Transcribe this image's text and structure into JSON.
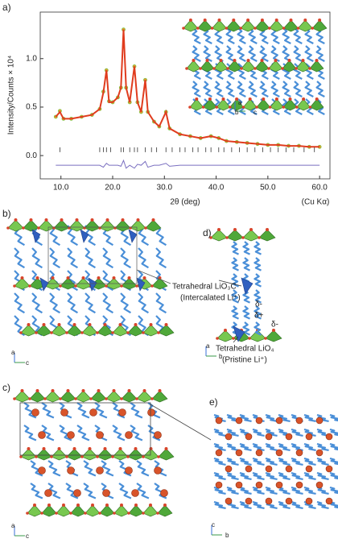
{
  "chart_data": {
    "type": "line",
    "panel_label": "a)",
    "ylabel": "Intensity/Counts × 10⁴",
    "xlabel": "2θ (deg)",
    "x_note": "(Cu Kα)",
    "xlim": [
      6,
      62
    ],
    "ylim": [
      -0.24,
      1.48
    ],
    "xticks": [
      {
        "value": 10,
        "label": "10.0"
      },
      {
        "value": 20,
        "label": "20.0"
      },
      {
        "value": 30,
        "label": "30.0"
      },
      {
        "value": 40,
        "label": "40.0"
      },
      {
        "value": 50,
        "label": "50.0"
      },
      {
        "value": 60,
        "label": "60.0"
      }
    ],
    "yticks": [
      {
        "value": 0,
        "label": "0.0"
      },
      {
        "value": 0.5,
        "label": "0.5"
      },
      {
        "value": 1,
        "label": "1.0"
      }
    ],
    "x": [
      9,
      9.8,
      10.5,
      12,
      14,
      16,
      17.5,
      18.2,
      18.8,
      19.3,
      20,
      21,
      21.6,
      22.1,
      22.6,
      23.3,
      24.2,
      24.8,
      25.5,
      26.3,
      26.8,
      28,
      29,
      30.3,
      31,
      33,
      35,
      37,
      39,
      40.5,
      42,
      44,
      46,
      48,
      50,
      52,
      54,
      56,
      58,
      60
    ],
    "series": [
      {
        "mark": "circle",
        "color": "#e8a030",
        "values": [
          0.4,
          0.46,
          0.38,
          0.38,
          0.4,
          0.42,
          0.48,
          0.66,
          0.88,
          0.56,
          0.55,
          0.6,
          0.7,
          1.3,
          0.7,
          0.55,
          0.92,
          0.55,
          0.45,
          0.78,
          0.45,
          0.35,
          0.3,
          0.45,
          0.28,
          0.22,
          0.2,
          0.18,
          0.2,
          0.18,
          0.15,
          0.14,
          0.13,
          0.12,
          0.11,
          0.11,
          0.1,
          0.1,
          0.09,
          0.09
        ]
      },
      {
        "mark": "line",
        "color": "#e03c1e",
        "values": [
          0.4,
          0.45,
          0.38,
          0.38,
          0.4,
          0.42,
          0.48,
          0.65,
          0.88,
          0.55,
          0.55,
          0.6,
          0.7,
          1.3,
          0.7,
          0.55,
          0.92,
          0.55,
          0.45,
          0.78,
          0.45,
          0.35,
          0.3,
          0.45,
          0.28,
          0.22,
          0.2,
          0.18,
          0.2,
          0.18,
          0.15,
          0.14,
          0.13,
          0.12,
          0.11,
          0.11,
          0.1,
          0.1,
          0.09,
          0.09
        ]
      },
      {
        "mark": "line",
        "color": "#7a6fc0",
        "values": [
          -0.1,
          -0.1,
          -0.1,
          -0.1,
          -0.1,
          -0.1,
          -0.1,
          -0.12,
          -0.08,
          -0.1,
          -0.1,
          -0.1,
          -0.11,
          -0.05,
          -0.13,
          -0.1,
          -0.13,
          -0.09,
          -0.1,
          -0.06,
          -0.12,
          -0.1,
          -0.1,
          -0.08,
          -0.11,
          -0.1,
          -0.1,
          -0.1,
          -0.1,
          -0.1,
          -0.1,
          -0.1,
          -0.1,
          -0.1,
          -0.1,
          -0.1,
          -0.1,
          -0.1,
          -0.1,
          -0.1
        ]
      }
    ],
    "bragg_ticks": {
      "color": "#333333",
      "y": 0.06,
      "x": [
        9.8,
        17.5,
        18.2,
        18.8,
        19.6,
        21.6,
        22.1,
        23.3,
        24.2,
        24.8,
        26.3,
        27.5,
        28.5,
        30.3,
        31.5,
        33,
        34,
        35.5,
        36.5,
        38,
        39,
        40.5,
        41.5,
        43,
        44.5,
        46,
        47.5,
        49,
        50.5,
        52,
        53.5,
        55,
        57,
        59
      ]
    },
    "inset_axes": {
      "a": "a",
      "b": "b",
      "c": "c"
    }
  },
  "panel_b": {
    "label": "b)",
    "axes": {
      "a": "a",
      "c": "c"
    }
  },
  "panel_c": {
    "label": "c)",
    "axes": {
      "a": "a",
      "c": "c"
    }
  },
  "panel_d": {
    "label": "d)",
    "axes": {
      "a": "a",
      "b": "b"
    },
    "annotations": {
      "intercalated_site": "Tetrahedral LiO₃C",
      "intercalated_note": "(Intercalated Li⁺)",
      "pristine_site": "Tetrahedral LiO₄",
      "pristine_note": "(Pristine Li⁺)",
      "delta_1": "δ-",
      "delta_2": "δ+",
      "delta_3": "δ-"
    }
  },
  "panel_e": {
    "label": "e)",
    "axes": {
      "c": "c",
      "b": "b"
    }
  }
}
